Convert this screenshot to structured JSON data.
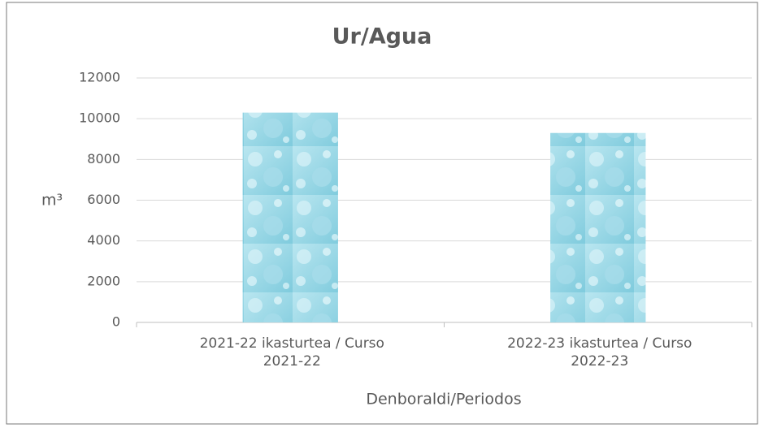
{
  "chart_data": {
    "type": "bar",
    "title": "Ur/Agua",
    "ylabel": "m³",
    "xlabel": "Denboraldi/Periodos",
    "categories": [
      "2021-22 ikasturtea / Curso 2021-22",
      "2022-23 ikasturtea / Curso 2022-23"
    ],
    "values": [
      10300,
      9300
    ],
    "color": "#8fd3e3",
    "ylim": [
      0,
      12000
    ],
    "yticks": [
      0,
      2000,
      4000,
      6000,
      8000,
      10000,
      12000
    ],
    "grid": true
  }
}
